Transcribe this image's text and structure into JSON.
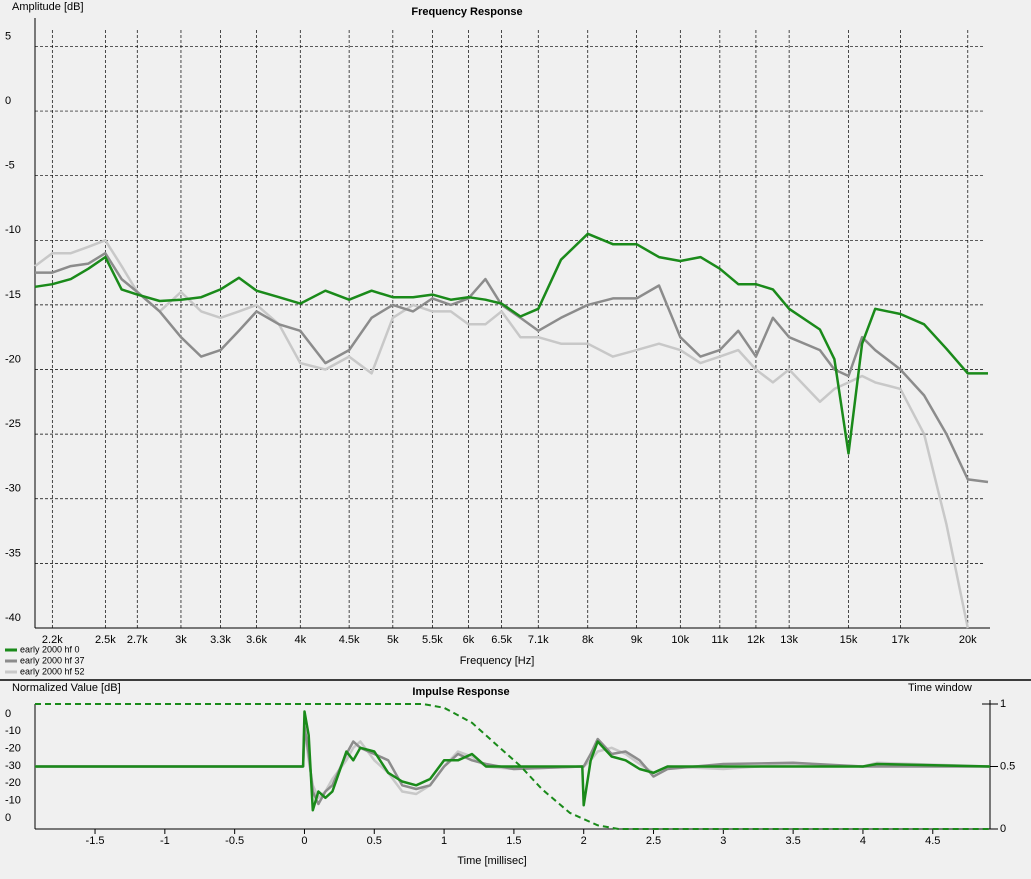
{
  "chart_data": [
    {
      "type": "line",
      "title": "Frequency Response",
      "x_label": "Frequency [Hz]",
      "y_label": "Amplitude [dB]",
      "log_x": true,
      "grid": true,
      "legend": "bottom-left",
      "xlim": [
        2110,
        21100
      ],
      "ylim": [
        -40,
        7.2
      ],
      "xticks": [
        {
          "value": 2200,
          "label": "2.2k"
        },
        {
          "value": 2500,
          "label": "2.5k"
        },
        {
          "value": 2700,
          "label": "2.7k"
        },
        {
          "value": 3000,
          "label": "3k"
        },
        {
          "value": 3300,
          "label": "3.3k"
        },
        {
          "value": 3600,
          "label": "3.6k"
        },
        {
          "value": 4000,
          "label": "4k"
        },
        {
          "value": 4500,
          "label": "4.5k"
        },
        {
          "value": 5000,
          "label": "5k"
        },
        {
          "value": 5500,
          "label": "5.5k"
        },
        {
          "value": 6000,
          "label": "6k"
        },
        {
          "value": 6500,
          "label": "6.5k"
        },
        {
          "value": 7100,
          "label": "7.1k"
        },
        {
          "value": 8000,
          "label": "8k"
        },
        {
          "value": 9000,
          "label": "9k"
        },
        {
          "value": 10000,
          "label": "10k"
        },
        {
          "value": 11000,
          "label": "11k"
        },
        {
          "value": 12000,
          "label": "12k"
        },
        {
          "value": 13000,
          "label": "13k"
        },
        {
          "value": 15000,
          "label": "15k"
        },
        {
          "value": 17000,
          "label": "17k"
        },
        {
          "value": 20000,
          "label": "20k"
        }
      ],
      "yticks": [
        -40,
        -35,
        -30,
        -25,
        -20,
        -15,
        -10,
        -5,
        0,
        5
      ],
      "x": [
        2110,
        2200,
        2300,
        2400,
        2500,
        2600,
        2700,
        2850,
        3000,
        3150,
        3300,
        3450,
        3600,
        3800,
        4000,
        4250,
        4500,
        4750,
        5000,
        5250,
        5500,
        5750,
        6000,
        6250,
        6500,
        6800,
        7100,
        7500,
        8000,
        8500,
        9000,
        9500,
        10000,
        10500,
        11000,
        11500,
        12000,
        12500,
        13000,
        14000,
        14500,
        15000,
        15500,
        16000,
        17000,
        18000,
        19000,
        20000,
        21000
      ],
      "series": [
        {
          "name": "early 2000 hf 0",
          "color": "#1a8a1a",
          "values": [
            -13.6,
            -13.4,
            -13,
            -12.2,
            -11.3,
            -13.8,
            -14.2,
            -14.7,
            -14.6,
            -14.4,
            -13.8,
            -12.9,
            -13.9,
            -14.4,
            -14.9,
            -13.9,
            -14.6,
            -13.9,
            -14.4,
            -14.4,
            -14.2,
            -14.6,
            -14.4,
            -14.6,
            -14.9,
            -15.9,
            -15.3,
            -11.5,
            -9.5,
            -10.3,
            -10.3,
            -11.3,
            -11.6,
            -11.3,
            -12.2,
            -13.4,
            -13.4,
            -13.8,
            -15.3,
            -16.9,
            -19.2,
            -26.5,
            -18,
            -15.3,
            -15.7,
            -16.5,
            -18.4,
            -20.3,
            -20.3
          ]
        },
        {
          "name": "early 2000 hf 37",
          "color": "#8c8c8c",
          "values": [
            -12.5,
            -12.5,
            -12,
            -11.8,
            -11,
            -13,
            -14,
            -15.5,
            -17.5,
            -19,
            -18.5,
            -17,
            -15.5,
            -16.5,
            -17,
            -19.5,
            -18.5,
            -16,
            -15,
            -15.5,
            -14.5,
            -15,
            -14.5,
            -13,
            -15,
            -16,
            -17,
            -16,
            -15,
            -14.5,
            -14.5,
            -13.5,
            -17.5,
            -19,
            -18.5,
            -17,
            -19,
            -16,
            -17.5,
            -18.5,
            -20,
            -20.5,
            -17.5,
            -18.5,
            -20,
            -22,
            -25,
            -28.5,
            -28.7
          ]
        },
        {
          "name": "early 2000 hf 52",
          "color": "#c8c8c8",
          "values": [
            -12,
            -11,
            -11,
            -10.5,
            -10,
            -12,
            -14,
            -15.5,
            -14,
            -15.5,
            -16,
            -15.5,
            -15,
            -16.5,
            -19.5,
            -20,
            -19,
            -20.3,
            -16,
            -15,
            -15.5,
            -15.5,
            -16.5,
            -16.5,
            -15.5,
            -17.5,
            -17.5,
            -18,
            -18,
            -19,
            -18.5,
            -18,
            -18.5,
            -19.5,
            -19,
            -18.5,
            -20,
            -21,
            -20,
            -22.5,
            -21.5,
            -21,
            -20.5,
            -21,
            -21.5,
            -25,
            -32,
            -40,
            null
          ]
        }
      ]
    },
    {
      "type": "line",
      "title": "Impulse Response",
      "x_label": "Time [millisec]",
      "y_label": "Normalized Value [dB]",
      "ylabels": [
        "0",
        "-10",
        "-20",
        "-30",
        "-20",
        "-10",
        "0"
      ],
      "xlim": [
        -1.93,
        4.91
      ],
      "xticks": [
        -1.5,
        -1,
        -0.5,
        0,
        0.5,
        1,
        1.5,
        2,
        2.5,
        3,
        3.5,
        4,
        4.5
      ],
      "y2lim": [
        0,
        1
      ],
      "y2ticks": [
        0,
        0.5,
        1
      ],
      "x": [
        -1.93,
        -0.01,
        0,
        0.03,
        0.06,
        0.1,
        0.15,
        0.2,
        0.3,
        0.35,
        0.4,
        0.5,
        0.6,
        0.7,
        0.8,
        0.9,
        1.0,
        1.1,
        1.2,
        1.3,
        1.5,
        1.99,
        2.0,
        2.05,
        2.1,
        2.2,
        2.3,
        2.4,
        2.5,
        2.6,
        3.0,
        3.5,
        4.0,
        4.1,
        4.91
      ],
      "series": [
        {
          "name": "early 2000 hf 52",
          "color": "#c8c8c8",
          "axis": "y2",
          "values": [
            0.5,
            0.5,
            0.8,
            0.55,
            0.35,
            0.25,
            0.3,
            0.4,
            0.55,
            0.65,
            0.7,
            0.55,
            0.45,
            0.3,
            0.28,
            0.35,
            0.5,
            0.62,
            0.58,
            0.5,
            0.48,
            0.5,
            0.5,
            0.55,
            0.62,
            0.65,
            0.6,
            0.52,
            0.45,
            0.5,
            0.48,
            0.52,
            0.5,
            0.53,
            0.5
          ]
        },
        {
          "name": "early 2000 hf 37",
          "color": "#8c8c8c",
          "axis": "y2",
          "values": [
            0.5,
            0.5,
            0.82,
            0.6,
            0.3,
            0.2,
            0.3,
            0.35,
            0.6,
            0.7,
            0.65,
            0.6,
            0.55,
            0.35,
            0.32,
            0.35,
            0.5,
            0.6,
            0.55,
            0.52,
            0.48,
            0.5,
            0.5,
            0.6,
            0.72,
            0.6,
            0.62,
            0.55,
            0.42,
            0.48,
            0.52,
            0.53,
            0.5,
            0.5,
            0.5
          ]
        },
        {
          "name": "early 2000 hf 0",
          "color": "#1a8a1a",
          "axis": "y2",
          "values": [
            0.5,
            0.5,
            0.94,
            0.75,
            0.15,
            0.3,
            0.25,
            0.3,
            0.62,
            0.55,
            0.65,
            0.62,
            0.45,
            0.38,
            0.35,
            0.4,
            0.55,
            0.55,
            0.6,
            0.5,
            0.5,
            0.5,
            0.19,
            0.55,
            0.7,
            0.58,
            0.55,
            0.48,
            0.45,
            0.5,
            0.5,
            0.5,
            0.5,
            0.52,
            0.5
          ]
        }
      ],
      "window": {
        "name": "Time window",
        "color": "#1a8a1a",
        "axis": "y2",
        "x": [
          -1.93,
          0.85,
          1.0,
          1.2,
          1.4,
          1.55,
          1.7,
          1.9,
          2.1,
          2.25,
          4.91
        ],
        "values": [
          1,
          1,
          0.97,
          0.85,
          0.65,
          0.5,
          0.32,
          0.13,
          0.03,
          0,
          0
        ]
      }
    }
  ]
}
